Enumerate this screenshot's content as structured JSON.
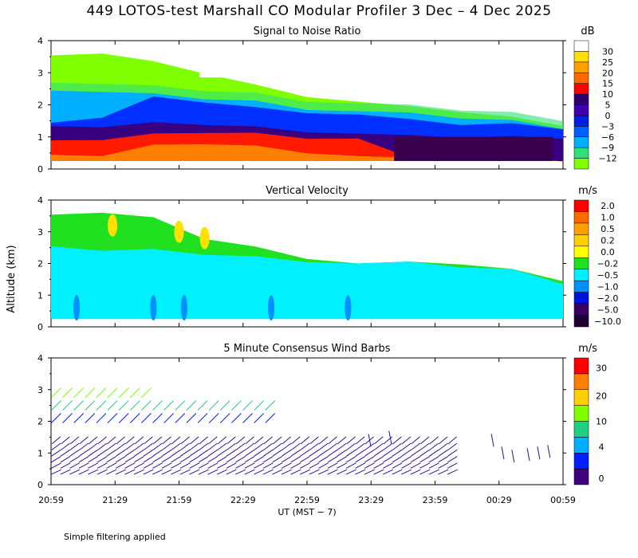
{
  "title": "449 LOTOS-test Marshall CO Modular Profiler  3 Dec –  4 Dec 2025",
  "footer_note": "Simple filtering applied",
  "colors": {
    "snr_scale": [
      "#7fff00",
      "#2fe07a",
      "#00b0ff",
      "#0060ff",
      "#0020e0",
      "#4000b0",
      "#300070",
      "#ff0000",
      "#ff6a00",
      "#ffa000",
      "#ffe000",
      "#ffffff"
    ],
    "vv_scale": [
      "#6000a0",
      "#3a0060",
      "#0010e0",
      "#0090ff",
      "#00f0ff",
      "#20e020",
      "#ffff00",
      "#ffd000",
      "#ffa000",
      "#ff6a00",
      "#ff0000"
    ],
    "wind_scale": [
      "#400080",
      "#0020ff",
      "#00b0ff",
      "#20d080",
      "#80ff00",
      "#ffd000",
      "#ff8000",
      "#ff0000"
    ]
  },
  "chart_data": [
    {
      "type": "heatmap",
      "title": "Signal to Noise Ratio",
      "unit": "dB",
      "ylabel": "Altitude (km)",
      "ylim": [
        0,
        4
      ],
      "yticks": [
        "0",
        "1",
        "2",
        "3",
        "4"
      ],
      "colorbar_labels": [
        "30",
        "25",
        "20",
        "15",
        "10",
        "5",
        "0",
        "−3",
        "−6",
        "−9",
        "−12"
      ],
      "x_extent_hours": [
        0,
        4
      ],
      "layers_km": [
        {
          "name": "signal_top",
          "heights": [
            3.6,
            3.6,
            3.3,
            3.0,
            2.6,
            2.3,
            2.1,
            1.9,
            1.8,
            1.6,
            1.4
          ]
        },
        {
          "name": "cyan_top",
          "heights": [
            2.5,
            2.4,
            2.3,
            2.2,
            2.1,
            1.9,
            1.8,
            1.7,
            1.6,
            1.5,
            1.3
          ]
        },
        {
          "name": "blue_top",
          "heights": [
            1.5,
            1.6,
            2.2,
            2.1,
            1.9,
            1.8,
            1.7,
            1.5,
            1.4,
            1.4,
            1.3
          ]
        },
        {
          "name": "purple_top",
          "heights": [
            1.4,
            1.3,
            1.4,
            1.4,
            1.3,
            1.2,
            1.1,
            1.0,
            1.0,
            1.0,
            1.0
          ]
        },
        {
          "name": "red_top",
          "heights": [
            1.0,
            0.9,
            1.1,
            1.2,
            1.1,
            1.0,
            0.8,
            0.3,
            0.3,
            0.3,
            0.3
          ]
        }
      ]
    },
    {
      "type": "heatmap",
      "title": "Vertical Velocity",
      "unit": "m/s",
      "ylabel": "Altitude (km)",
      "ylim": [
        0,
        4
      ],
      "yticks": [
        "0",
        "1",
        "2",
        "3",
        "4"
      ],
      "colorbar_labels": [
        "2.0",
        "1.0",
        "0.5",
        "0.2",
        "0.0",
        "−0.2",
        "−0.5",
        "−1.0",
        "−2.0",
        "−5.0",
        "−10.0"
      ],
      "layers_km": [
        {
          "name": "green_top",
          "heights": [
            3.6,
            3.6,
            3.4,
            2.8,
            2.5,
            2.2,
            2.0,
            2.0,
            2.0,
            1.8,
            1.5
          ]
        },
        {
          "name": "cyan_top",
          "heights": [
            2.6,
            2.4,
            2.4,
            2.3,
            2.2,
            2.1,
            2.0,
            2.0,
            1.9,
            1.8,
            1.4
          ]
        }
      ]
    },
    {
      "type": "scatter",
      "title": "5 Minute Consensus Wind Barbs",
      "unit": "m/s",
      "ylabel": "Altitude (km)",
      "xlabel": "UT  (MST − 7)",
      "ylim": [
        0,
        4
      ],
      "yticks": [
        "0",
        "1",
        "2",
        "3",
        "4"
      ],
      "xticks": [
        "20:59",
        "21:29",
        "21:59",
        "22:29",
        "22:59",
        "23:29",
        "23:59",
        "00:29",
        "00:59"
      ],
      "colorbar_labels": [
        "30",
        "20",
        "10",
        "4",
        "0"
      ],
      "barb_rows_km": [
        0.4,
        0.6,
        0.8,
        1.0,
        1.2,
        1.4
      ],
      "upper_rows_km": [
        2.1,
        2.5,
        2.9
      ]
    }
  ]
}
